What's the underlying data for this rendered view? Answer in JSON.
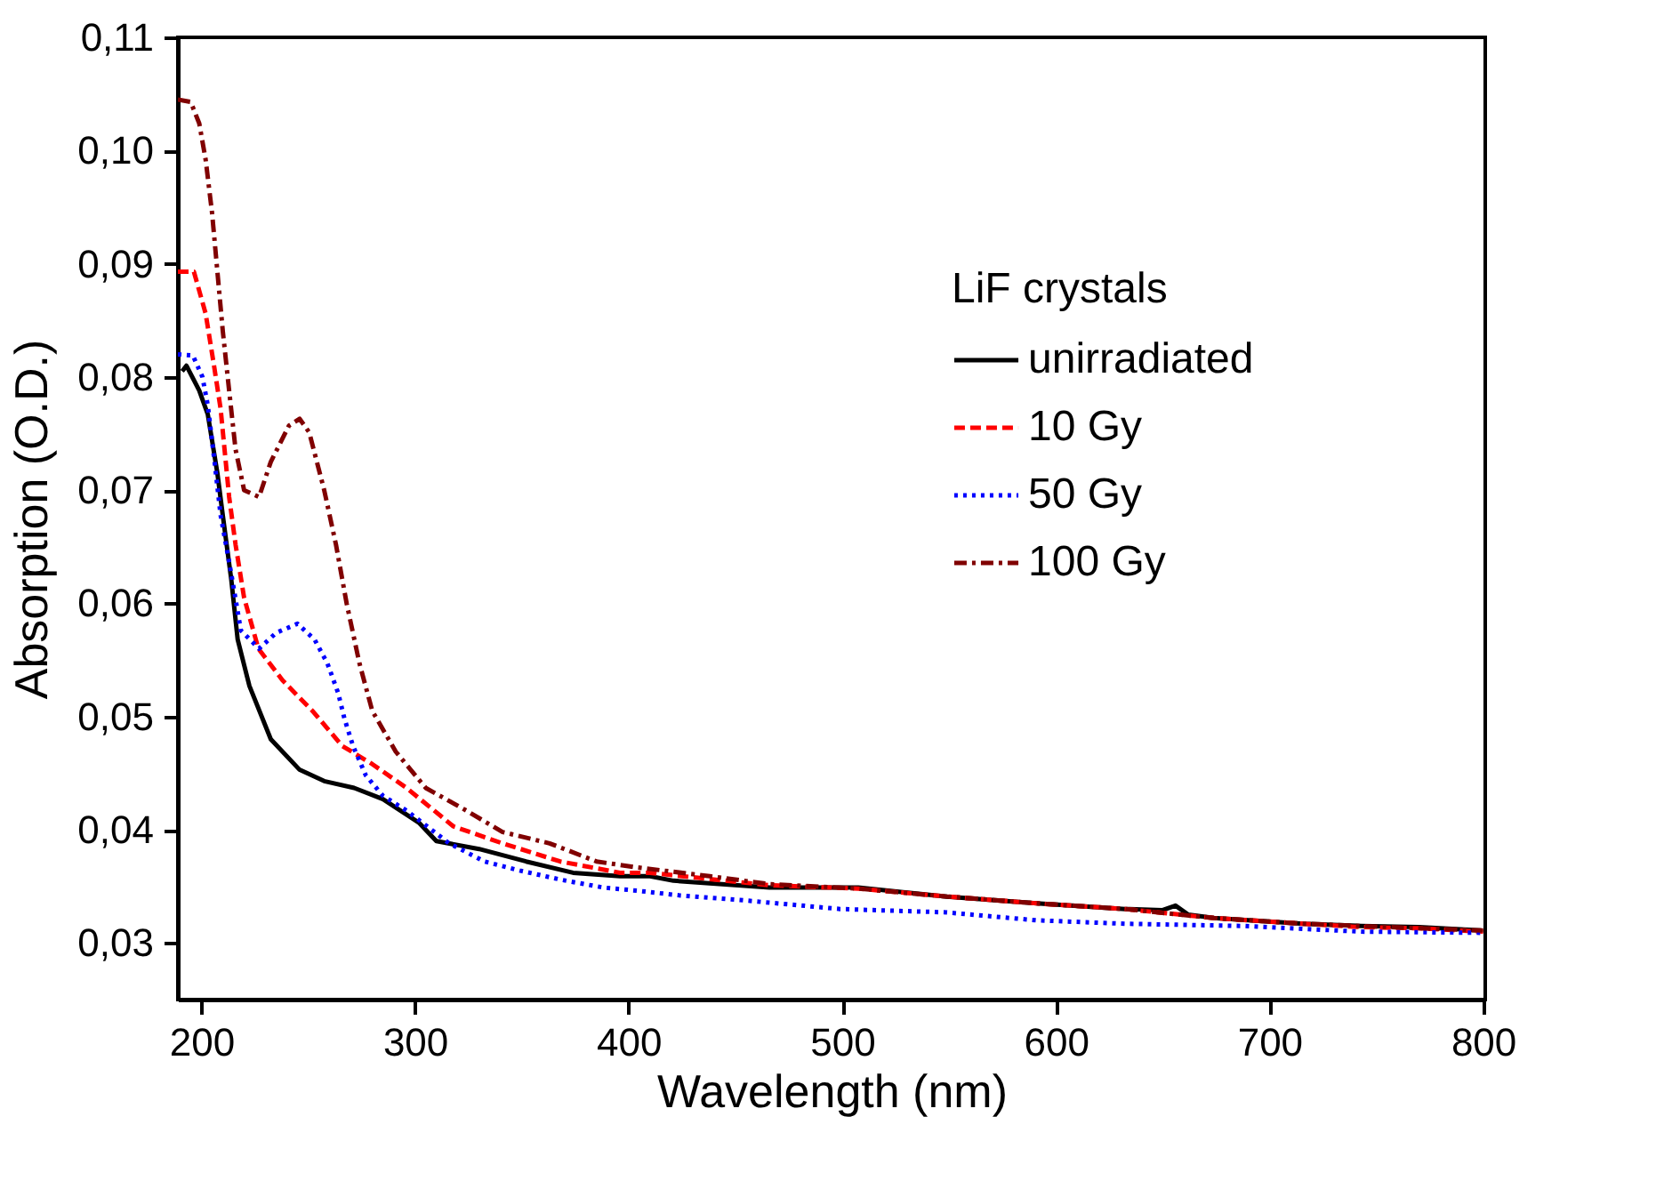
{
  "chart_data": {
    "type": "line",
    "xlabel": "Wavelength (nm)",
    "ylabel": "Absorption (O.D.)",
    "legend_title": "LiF crystals",
    "legend": "top right",
    "grid": false,
    "xlim": [
      189,
      801
    ],
    "xticks": [
      200,
      300,
      400,
      500,
      600,
      700,
      800
    ],
    "ylim": [
      0.025,
      0.11
    ],
    "yticks": [
      {
        "value": 0.03,
        "label": "0,03"
      },
      {
        "value": 0.04,
        "label": "0,04"
      },
      {
        "value": 0.05,
        "label": "0,05"
      },
      {
        "value": 0.06,
        "label": "0,06"
      },
      {
        "value": 0.07,
        "label": "0,07"
      },
      {
        "value": 0.08,
        "label": "0,08"
      },
      {
        "value": 0.09,
        "label": "0,09"
      },
      {
        "value": 0.1,
        "label": "0,10"
      },
      {
        "value": 0.11,
        "label": "0,11"
      }
    ],
    "series": [
      {
        "name": "unirradiated",
        "color": "#000000",
        "line_style": "solid",
        "x": [
          191,
          193,
          199,
          203,
          207.5,
          210,
          214,
          217,
          222.5,
          232.5,
          246,
          257.5,
          271.5,
          285,
          302,
          310,
          330,
          352,
          374,
          396,
          410,
          421,
          466,
          507.5,
          549,
          591,
          632.5,
          650,
          656,
          662,
          674,
          716,
          743,
          770,
          799
        ],
        "values": [
          0.0805,
          0.081,
          0.0788,
          0.0767,
          0.0715,
          0.0678,
          0.0621,
          0.0568,
          0.0527,
          0.048,
          0.0453,
          0.0443,
          0.0437,
          0.0427,
          0.0406,
          0.039,
          0.0383,
          0.0372,
          0.0362,
          0.0359,
          0.0359,
          0.0355,
          0.0349,
          0.0349,
          0.0341,
          0.0335,
          0.033,
          0.0329,
          0.0333,
          0.0325,
          0.0322,
          0.0317,
          0.0315,
          0.0314,
          0.0311
        ]
      },
      {
        "name": "10 Gy",
        "color": "#ff0000",
        "line_style": "dashed",
        "x": [
          189,
          196.5,
          202,
          206,
          209,
          213,
          216,
          220,
          226.7,
          238,
          252,
          266,
          280,
          296,
          318,
          341,
          368,
          396,
          410,
          466,
          507.5,
          549,
          591,
          632.5,
          674,
          716,
          743,
          770,
          800
        ],
        "values": [
          0.0893,
          0.0893,
          0.0856,
          0.0809,
          0.0772,
          0.0694,
          0.0652,
          0.0605,
          0.056,
          0.0532,
          0.0505,
          0.0474,
          0.0458,
          0.0437,
          0.0403,
          0.0388,
          0.0372,
          0.0362,
          0.0362,
          0.0351,
          0.0348,
          0.0341,
          0.0335,
          0.033,
          0.0322,
          0.0317,
          0.0314,
          0.0313,
          0.031
        ]
      },
      {
        "name": "50 Gy",
        "color": "#0000ff",
        "line_style": "dotted",
        "x": [
          189,
          196,
          200.5,
          203,
          206,
          209,
          214,
          218.5,
          227,
          235,
          245,
          253,
          259,
          264,
          267,
          271,
          277,
          285,
          296,
          316,
          332.5,
          349,
          368,
          388,
          405,
          424,
          452,
          499,
          549,
          591,
          632.5,
          688,
          743,
          799
        ],
        "values": [
          0.082,
          0.0819,
          0.08,
          0.0775,
          0.0728,
          0.0678,
          0.0626,
          0.0576,
          0.056,
          0.0574,
          0.0582,
          0.0568,
          0.0547,
          0.0521,
          0.0498,
          0.0474,
          0.0448,
          0.043,
          0.0417,
          0.0388,
          0.0372,
          0.0364,
          0.0356,
          0.0349,
          0.0346,
          0.0342,
          0.0338,
          0.033,
          0.0327,
          0.032,
          0.0317,
          0.0315,
          0.031,
          0.0309
        ]
      },
      {
        "name": "100 Gy",
        "color": "#800000",
        "line_style": "dashdot",
        "x": [
          189,
          195,
          199,
          202,
          205,
          207.5,
          210,
          213,
          216,
          220,
          227,
          232.5,
          241,
          246,
          250.5,
          257.5,
          263,
          268,
          274,
          280,
          291,
          305,
          324,
          341,
          363,
          385,
          403,
          438,
          466,
          507.5,
          549,
          591,
          632.5,
          674,
          716,
          743,
          770,
          800
        ],
        "values": [
          0.1045,
          0.1043,
          0.1024,
          0.0992,
          0.0945,
          0.0893,
          0.0841,
          0.0788,
          0.0736,
          0.07,
          0.0694,
          0.0725,
          0.0757,
          0.0763,
          0.0751,
          0.07,
          0.0652,
          0.06,
          0.0547,
          0.0505,
          0.0469,
          0.0437,
          0.0417,
          0.0398,
          0.0388,
          0.0372,
          0.0367,
          0.0359,
          0.0352,
          0.0348,
          0.0341,
          0.0335,
          0.033,
          0.0322,
          0.0317,
          0.0315,
          0.0313,
          0.0311
        ]
      }
    ]
  }
}
